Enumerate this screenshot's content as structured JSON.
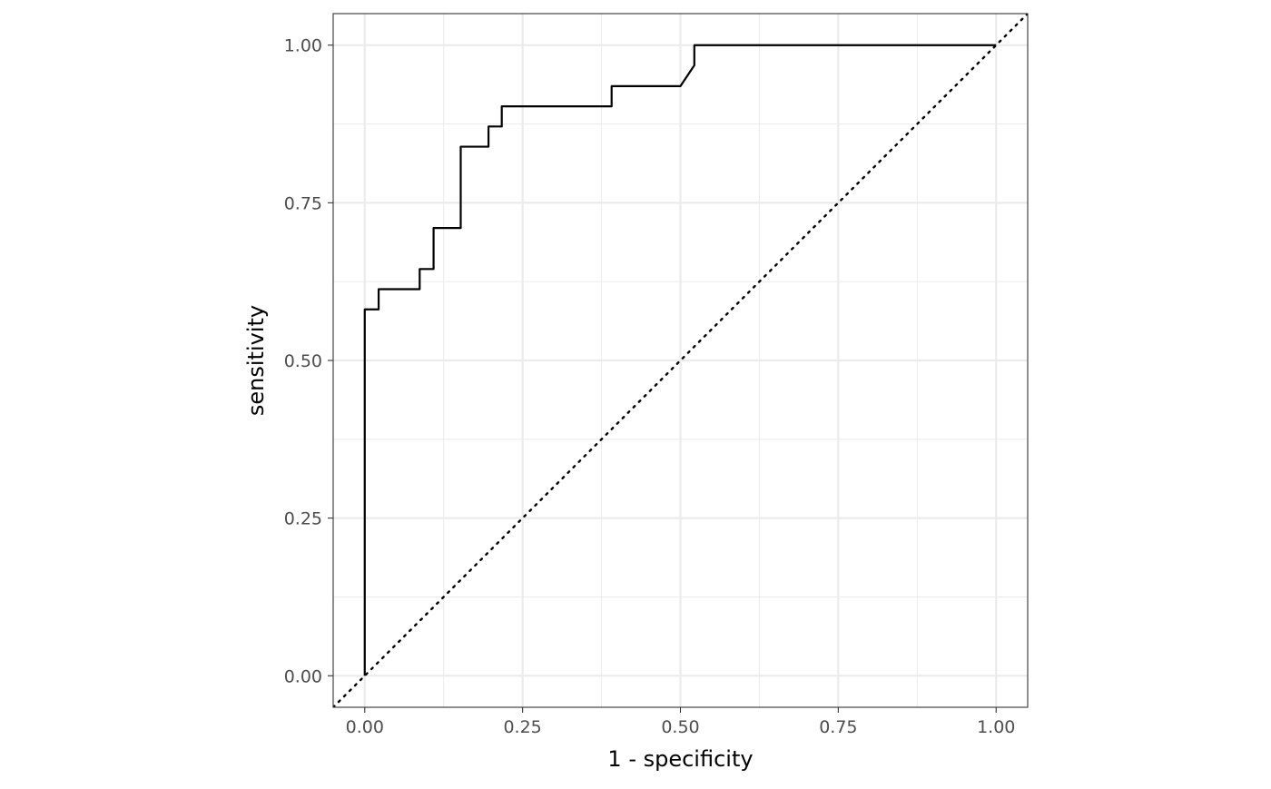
{
  "chart_data": {
    "type": "line",
    "title": "",
    "xlabel": "1 - specificity",
    "ylabel": "sensitivity",
    "xlim": [
      -0.05,
      1.05
    ],
    "ylim": [
      -0.05,
      1.05
    ],
    "x_ticks": [
      0.0,
      0.25,
      0.5,
      0.75,
      1.0
    ],
    "x_tick_labels": [
      "0.00",
      "0.25",
      "0.50",
      "0.75",
      "1.00"
    ],
    "y_ticks": [
      0.0,
      0.25,
      0.5,
      0.75,
      1.0
    ],
    "y_tick_labels": [
      "0.00",
      "0.25",
      "0.50",
      "0.75",
      "1.00"
    ],
    "x_minor": [
      0.125,
      0.375,
      0.625,
      0.875
    ],
    "y_minor": [
      0.125,
      0.375,
      0.625,
      0.875
    ],
    "grid": true,
    "aspect": "equal",
    "series": [
      {
        "style": "solid",
        "color": "#000000",
        "x": [
          0.0,
          0.0,
          0.022,
          0.022,
          0.087,
          0.087,
          0.109,
          0.109,
          0.152,
          0.152,
          0.196,
          0.196,
          0.217,
          0.217,
          0.391,
          0.391,
          0.5,
          0.522,
          0.522,
          1.0
        ],
        "y": [
          0.0,
          0.581,
          0.581,
          0.613,
          0.613,
          0.645,
          0.645,
          0.71,
          0.71,
          0.839,
          0.839,
          0.871,
          0.871,
          0.903,
          0.903,
          0.935,
          0.935,
          0.968,
          1.0,
          1.0
        ]
      },
      {
        "style": "dotted",
        "color": "#000000",
        "x": [
          -0.05,
          1.05
        ],
        "y": [
          -0.05,
          1.05
        ]
      }
    ]
  }
}
